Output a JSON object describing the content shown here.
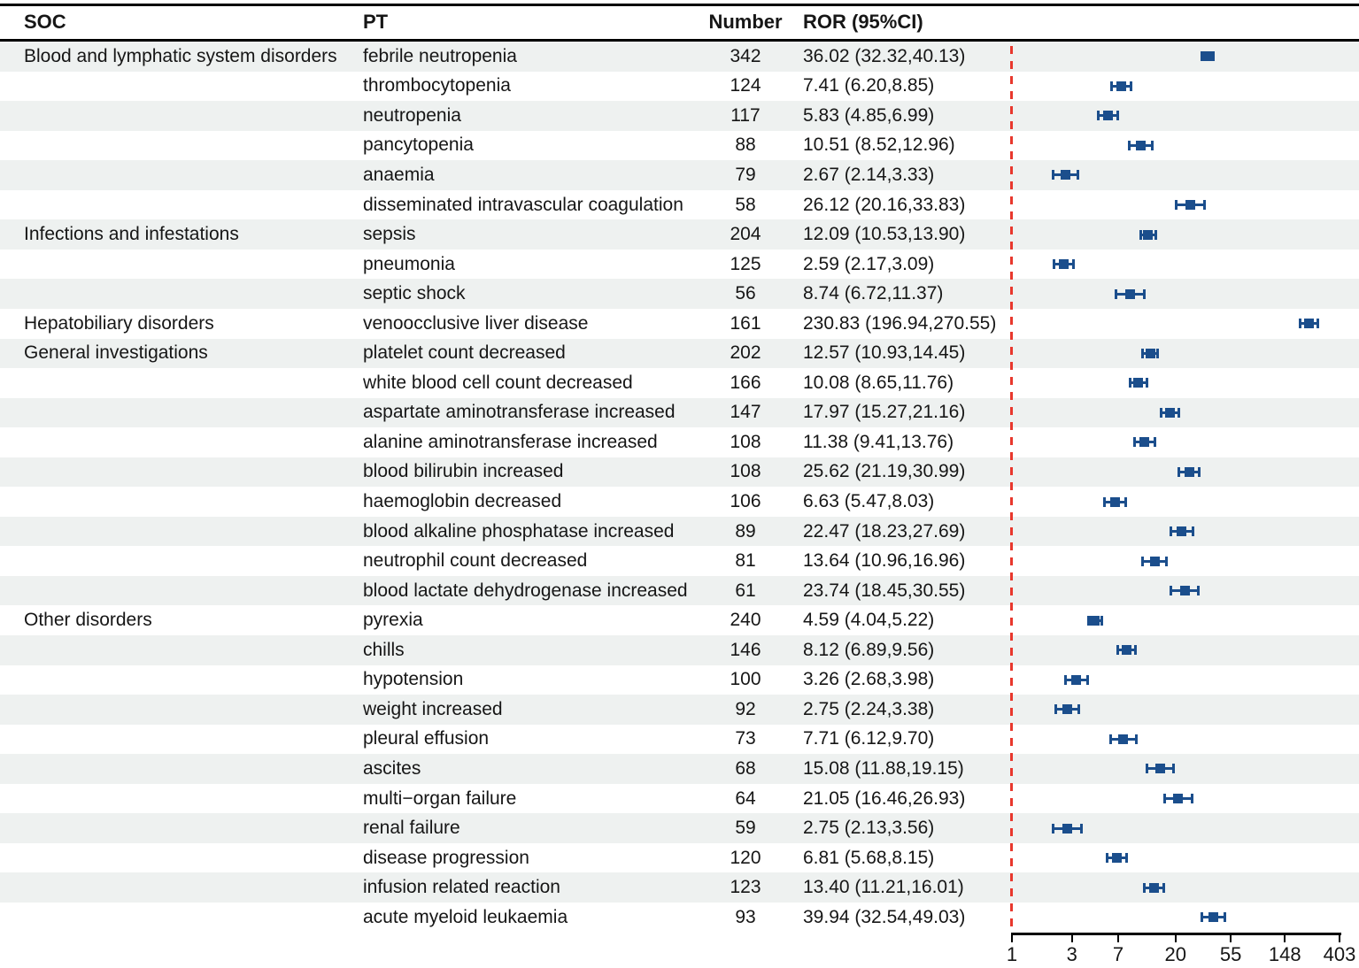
{
  "header": {
    "soc": "SOC",
    "pt": "PT",
    "number": "Number",
    "ror": "ROR (95%CI)"
  },
  "colors": {
    "marker_blue": "#1b4e8c",
    "reference_red": "#e8382d",
    "stripe_gray": "#eef1f0",
    "rule_black": "#000000",
    "text": "#161616"
  },
  "chart_data": {
    "type": "forest",
    "title": "",
    "x_scale": "log",
    "x_ticks": [
      1,
      3,
      7,
      20,
      55,
      148,
      403
    ],
    "x_range": [
      1,
      403
    ],
    "reference_line": 1,
    "legend": "none",
    "columns": [
      "SOC",
      "PT",
      "Number",
      "ROR (95%CI)"
    ],
    "rows": [
      {
        "soc": "Blood and lymphatic system disorders",
        "pt": "febrile neutropenia",
        "number": 342,
        "ror_text": "36.02 (32.32,40.13)",
        "ror": 36.02,
        "ci_low": 32.32,
        "ci_high": 40.13
      },
      {
        "soc": "",
        "pt": "thrombocytopenia",
        "number": 124,
        "ror_text": "7.41 (6.20,8.85)",
        "ror": 7.41,
        "ci_low": 6.2,
        "ci_high": 8.85
      },
      {
        "soc": "",
        "pt": "neutropenia",
        "number": 117,
        "ror_text": "5.83 (4.85,6.99)",
        "ror": 5.83,
        "ci_low": 4.85,
        "ci_high": 6.99
      },
      {
        "soc": "",
        "pt": "pancytopenia",
        "number": 88,
        "ror_text": "10.51 (8.52,12.96)",
        "ror": 10.51,
        "ci_low": 8.52,
        "ci_high": 12.96
      },
      {
        "soc": "",
        "pt": "anaemia",
        "number": 79,
        "ror_text": "2.67 (2.14,3.33)",
        "ror": 2.67,
        "ci_low": 2.14,
        "ci_high": 3.33
      },
      {
        "soc": "",
        "pt": "disseminated intravascular coagulation",
        "number": 58,
        "ror_text": "26.12 (20.16,33.83)",
        "ror": 26.12,
        "ci_low": 20.16,
        "ci_high": 33.83
      },
      {
        "soc": "Infections and infestations",
        "pt": "sepsis",
        "number": 204,
        "ror_text": "12.09 (10.53,13.90)",
        "ror": 12.09,
        "ci_low": 10.53,
        "ci_high": 13.9
      },
      {
        "soc": "",
        "pt": "pneumonia",
        "number": 125,
        "ror_text": "2.59 (2.17,3.09)",
        "ror": 2.59,
        "ci_low": 2.17,
        "ci_high": 3.09
      },
      {
        "soc": "",
        "pt": "septic shock",
        "number": 56,
        "ror_text": "8.74 (6.72,11.37)",
        "ror": 8.74,
        "ci_low": 6.72,
        "ci_high": 11.37
      },
      {
        "soc": "Hepatobiliary disorders",
        "pt": "venoocclusive liver disease",
        "number": 161,
        "ror_text": "230.83 (196.94,270.55)",
        "ror": 230.83,
        "ci_low": 196.94,
        "ci_high": 270.55
      },
      {
        "soc": "General investigations",
        "pt": "platelet count decreased",
        "number": 202,
        "ror_text": "12.57 (10.93,14.45)",
        "ror": 12.57,
        "ci_low": 10.93,
        "ci_high": 14.45
      },
      {
        "soc": "",
        "pt": "white blood cell count decreased",
        "number": 166,
        "ror_text": "10.08 (8.65,11.76)",
        "ror": 10.08,
        "ci_low": 8.65,
        "ci_high": 11.76
      },
      {
        "soc": "",
        "pt": "aspartate aminotransferase increased",
        "number": 147,
        "ror_text": "17.97 (15.27,21.16)",
        "ror": 17.97,
        "ci_low": 15.27,
        "ci_high": 21.16
      },
      {
        "soc": "",
        "pt": "alanine aminotransferase increased",
        "number": 108,
        "ror_text": "11.38 (9.41,13.76)",
        "ror": 11.38,
        "ci_low": 9.41,
        "ci_high": 13.76
      },
      {
        "soc": "",
        "pt": "blood bilirubin increased",
        "number": 108,
        "ror_text": "25.62 (21.19,30.99)",
        "ror": 25.62,
        "ci_low": 21.19,
        "ci_high": 30.99
      },
      {
        "soc": "",
        "pt": "haemoglobin decreased",
        "number": 106,
        "ror_text": "6.63 (5.47,8.03)",
        "ror": 6.63,
        "ci_low": 5.47,
        "ci_high": 8.03
      },
      {
        "soc": "",
        "pt": "blood alkaline phosphatase increased",
        "number": 89,
        "ror_text": "22.47 (18.23,27.69)",
        "ror": 22.47,
        "ci_low": 18.23,
        "ci_high": 27.69
      },
      {
        "soc": "",
        "pt": "neutrophil count decreased",
        "number": 81,
        "ror_text": "13.64 (10.96,16.96)",
        "ror": 13.64,
        "ci_low": 10.96,
        "ci_high": 16.96
      },
      {
        "soc": "",
        "pt": "blood lactate dehydrogenase increased",
        "number": 61,
        "ror_text": "23.74 (18.45,30.55)",
        "ror": 23.74,
        "ci_low": 18.45,
        "ci_high": 30.55
      },
      {
        "soc": "Other disorders",
        "pt": "pyrexia",
        "number": 240,
        "ror_text": "4.59 (4.04,5.22)",
        "ror": 4.59,
        "ci_low": 4.04,
        "ci_high": 5.22
      },
      {
        "soc": "",
        "pt": "chills",
        "number": 146,
        "ror_text": "8.12 (6.89,9.56)",
        "ror": 8.12,
        "ci_low": 6.89,
        "ci_high": 9.56
      },
      {
        "soc": "",
        "pt": "hypotension",
        "number": 100,
        "ror_text": "3.26 (2.68,3.98)",
        "ror": 3.26,
        "ci_low": 2.68,
        "ci_high": 3.98
      },
      {
        "soc": "",
        "pt": "weight increased",
        "number": 92,
        "ror_text": "2.75 (2.24,3.38)",
        "ror": 2.75,
        "ci_low": 2.24,
        "ci_high": 3.38
      },
      {
        "soc": "",
        "pt": "pleural effusion",
        "number": 73,
        "ror_text": "7.71 (6.12,9.70)",
        "ror": 7.71,
        "ci_low": 6.12,
        "ci_high": 9.7
      },
      {
        "soc": "",
        "pt": "ascites",
        "number": 68,
        "ror_text": "15.08 (11.88,19.15)",
        "ror": 15.08,
        "ci_low": 11.88,
        "ci_high": 19.15
      },
      {
        "soc": "",
        "pt": "multi−organ failure",
        "number": 64,
        "ror_text": "21.05 (16.46,26.93)",
        "ror": 21.05,
        "ci_low": 16.46,
        "ci_high": 26.93
      },
      {
        "soc": "",
        "pt": "renal failure",
        "number": 59,
        "ror_text": "2.75 (2.13,3.56)",
        "ror": 2.75,
        "ci_low": 2.13,
        "ci_high": 3.56
      },
      {
        "soc": "",
        "pt": "disease progression",
        "number": 120,
        "ror_text": "6.81 (5.68,8.15)",
        "ror": 6.81,
        "ci_low": 5.68,
        "ci_high": 8.15
      },
      {
        "soc": "",
        "pt": "infusion related reaction",
        "number": 123,
        "ror_text": "13.40 (11.21,16.01)",
        "ror": 13.4,
        "ci_low": 11.21,
        "ci_high": 16.01
      },
      {
        "soc": "",
        "pt": "acute myeloid leukaemia",
        "number": 93,
        "ror_text": "39.94 (32.54,49.03)",
        "ror": 39.94,
        "ci_low": 32.54,
        "ci_high": 49.03
      }
    ]
  }
}
